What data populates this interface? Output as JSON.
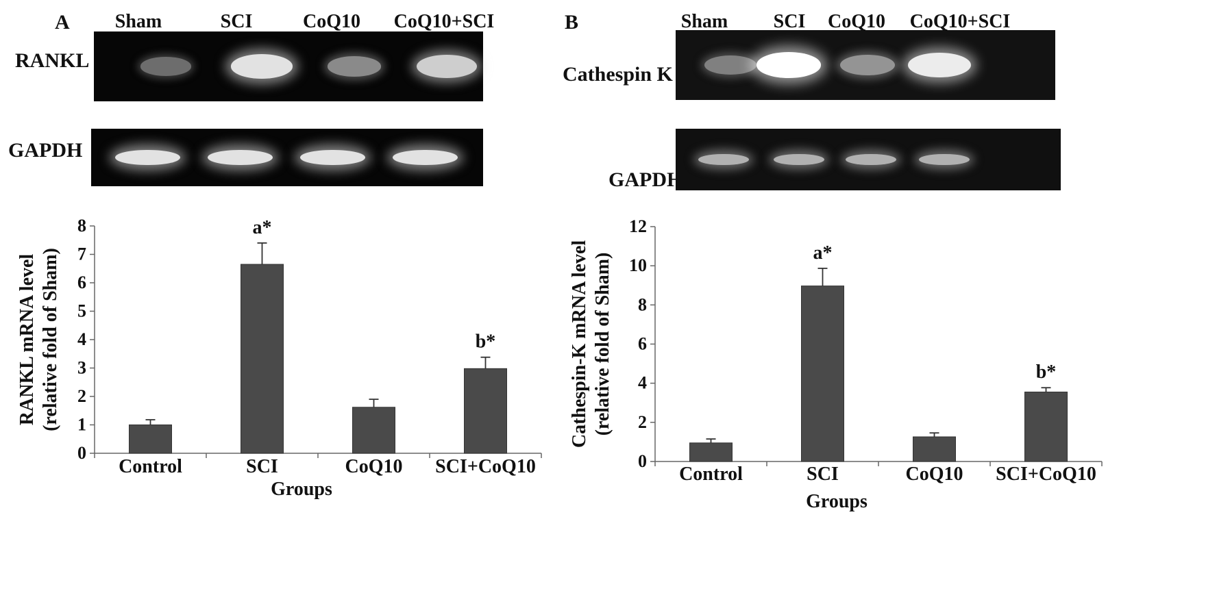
{
  "panels": [
    {
      "letter": "A",
      "lanes": [
        "Sham",
        "SCI",
        "CoQ10",
        "CoQ10+SCI"
      ],
      "target_label": "RANKL",
      "control_label": "GAPDH",
      "target_band_intensity": [
        0.25,
        0.85,
        0.4,
        0.75
      ],
      "control_band_intensity": [
        0.85,
        0.85,
        0.85,
        0.85
      ]
    },
    {
      "letter": "B",
      "lanes": [
        "Sham",
        "SCI",
        "CoQ10",
        "CoQ10+SCI"
      ],
      "target_label": "Cathespin K",
      "control_label": "GAPDH",
      "target_band_intensity": [
        0.35,
        1.0,
        0.45,
        0.9
      ],
      "control_band_intensity": [
        0.6,
        0.6,
        0.6,
        0.6
      ]
    }
  ],
  "chart_data": [
    {
      "type": "bar",
      "categories": [
        "Control",
        "SCI",
        "CoQ10",
        "SCI+CoQ10"
      ],
      "values": [
        1.0,
        6.65,
        1.62,
        2.98
      ],
      "errors": [
        0.18,
        0.75,
        0.28,
        0.4
      ],
      "annotations": [
        "",
        "a*",
        "",
        "b*"
      ],
      "xlabel": "Groups",
      "ylabel": [
        "RANKL mRNA level",
        "(relative fold of Sham)"
      ],
      "ylim": [
        0,
        8
      ],
      "yticks": [
        0,
        1,
        2,
        3,
        4,
        5,
        6,
        7,
        8
      ],
      "bar_color": "#4a4a4a",
      "grid": false
    },
    {
      "type": "bar",
      "categories": [
        "Control",
        "SCI",
        "CoQ10",
        "SCI+CoQ10"
      ],
      "values": [
        0.95,
        8.97,
        1.26,
        3.55
      ],
      "errors": [
        0.2,
        0.9,
        0.2,
        0.22
      ],
      "annotations": [
        "",
        "a*",
        "",
        "b*"
      ],
      "xlabel": "Groups",
      "ylabel": [
        "Cathespin-K mRNA level",
        "(relative fold of Sham)"
      ],
      "ylim": [
        0,
        12
      ],
      "yticks": [
        0,
        2,
        4,
        6,
        8,
        10,
        12
      ],
      "bar_color": "#4a4a4a",
      "grid": false
    }
  ]
}
